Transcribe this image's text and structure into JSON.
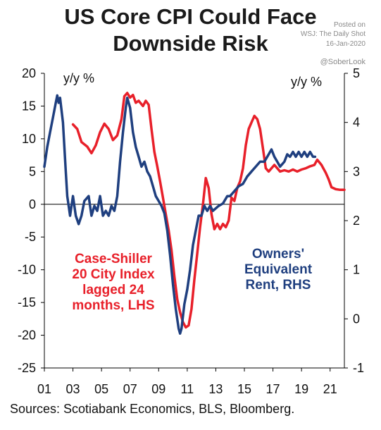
{
  "title_line1": "US Core CPI Could Face",
  "title_line2": "Downside Risk",
  "source_lines": [
    "Posted on",
    "WSJ: The Daily Shot",
    "16-Jan-2020",
    "@SoberLook"
  ],
  "sources": "Sources: Scotiabank Economics, BLS, Bloomberg.",
  "chart_data": {
    "type": "line",
    "title": "US Core CPI Could Face Downside Risk",
    "y_left_label": "y/y %",
    "y_right_label": "y/y %",
    "ylim_left": [
      -25,
      20
    ],
    "ylim_right": [
      -1,
      5
    ],
    "xlim": [
      2001,
      2022
    ],
    "x_tick_labels": [
      "01",
      "03",
      "05",
      "07",
      "09",
      "11",
      "13",
      "15",
      "17",
      "19",
      "21"
    ],
    "left_tick_labels": [
      "20",
      "15",
      "10",
      "5",
      "0",
      "-5",
      "-10",
      "-15",
      "-20",
      "-25"
    ],
    "right_tick_labels": [
      "5",
      "4",
      "3",
      "2",
      "1",
      "0",
      "-1"
    ],
    "grid": false,
    "series": [
      {
        "name": "Case-Shiller 20 City Index lagged 24 months, LHS",
        "axis": "left",
        "color": "#e8202a",
        "points": [
          [
            2003.0,
            12.2
          ],
          [
            2003.3,
            11.5
          ],
          [
            2003.6,
            9.5
          ],
          [
            2004.0,
            8.8
          ],
          [
            2004.3,
            7.8
          ],
          [
            2004.6,
            9.0
          ],
          [
            2004.9,
            11.0
          ],
          [
            2005.2,
            12.3
          ],
          [
            2005.5,
            11.5
          ],
          [
            2005.8,
            9.8
          ],
          [
            2006.1,
            10.5
          ],
          [
            2006.4,
            13.0
          ],
          [
            2006.6,
            16.5
          ],
          [
            2006.8,
            17.0
          ],
          [
            2007.0,
            16.3
          ],
          [
            2007.2,
            16.7
          ],
          [
            2007.4,
            15.5
          ],
          [
            2007.6,
            15.8
          ],
          [
            2007.9,
            15.0
          ],
          [
            2008.1,
            15.8
          ],
          [
            2008.3,
            15.2
          ],
          [
            2008.5,
            11.5
          ],
          [
            2008.7,
            8.0
          ],
          [
            2008.9,
            5.8
          ],
          [
            2009.1,
            3.5
          ],
          [
            2009.3,
            1.0
          ],
          [
            2009.5,
            -1.5
          ],
          [
            2009.7,
            -4.0
          ],
          [
            2009.9,
            -7.0
          ],
          [
            2010.1,
            -11.0
          ],
          [
            2010.3,
            -14.5
          ],
          [
            2010.5,
            -16.5
          ],
          [
            2010.7,
            -18.0
          ],
          [
            2010.9,
            -18.8
          ],
          [
            2011.1,
            -18.5
          ],
          [
            2011.3,
            -16.0
          ],
          [
            2011.5,
            -11.5
          ],
          [
            2011.7,
            -7.5
          ],
          [
            2011.9,
            -3.5
          ],
          [
            2012.1,
            0.0
          ],
          [
            2012.3,
            4.0
          ],
          [
            2012.5,
            2.5
          ],
          [
            2012.7,
            -1.5
          ],
          [
            2012.9,
            -3.8
          ],
          [
            2013.1,
            -3.0
          ],
          [
            2013.3,
            -3.8
          ],
          [
            2013.5,
            -3.0
          ],
          [
            2013.7,
            -3.5
          ],
          [
            2013.9,
            -2.5
          ],
          [
            2014.1,
            1.0
          ],
          [
            2014.3,
            0.5
          ],
          [
            2014.5,
            2.5
          ],
          [
            2014.7,
            3.5
          ],
          [
            2014.9,
            5.5
          ],
          [
            2015.1,
            9.0
          ],
          [
            2015.3,
            11.5
          ],
          [
            2015.5,
            12.5
          ],
          [
            2015.7,
            13.5
          ],
          [
            2015.9,
            13.0
          ],
          [
            2016.1,
            11.5
          ],
          [
            2016.3,
            8.5
          ],
          [
            2016.5,
            5.5
          ],
          [
            2016.7,
            5.0
          ],
          [
            2016.9,
            5.5
          ],
          [
            2017.1,
            6.0
          ],
          [
            2017.3,
            5.5
          ],
          [
            2017.5,
            5.0
          ],
          [
            2017.8,
            5.2
          ],
          [
            2018.1,
            5.0
          ],
          [
            2018.4,
            5.3
          ],
          [
            2018.7,
            5.0
          ],
          [
            2019.0,
            5.3
          ],
          [
            2019.3,
            5.5
          ],
          [
            2019.6,
            5.8
          ],
          [
            2019.9,
            6.0
          ],
          [
            2020.1,
            6.8
          ],
          [
            2020.4,
            6.0
          ],
          [
            2020.7,
            4.8
          ],
          [
            2020.9,
            3.8
          ],
          [
            2021.1,
            2.6
          ],
          [
            2021.4,
            2.3
          ],
          [
            2021.7,
            2.2
          ],
          [
            2022.0,
            2.2
          ]
        ]
      },
      {
        "name": "Owners' Equivalent Rent, RHS",
        "axis": "right",
        "color": "#1f3f7f",
        "points": [
          [
            2001.0,
            3.1
          ],
          [
            2001.2,
            3.5
          ],
          [
            2001.4,
            3.8
          ],
          [
            2001.6,
            4.1
          ],
          [
            2001.8,
            4.4
          ],
          [
            2001.9,
            4.55
          ],
          [
            2002.0,
            4.4
          ],
          [
            2002.1,
            4.5
          ],
          [
            2002.3,
            4.0
          ],
          [
            2002.4,
            3.5
          ],
          [
            2002.5,
            3.0
          ],
          [
            2002.6,
            2.5
          ],
          [
            2002.8,
            2.1
          ],
          [
            2003.0,
            2.5
          ],
          [
            2003.2,
            2.1
          ],
          [
            2003.4,
            1.93
          ],
          [
            2003.6,
            2.1
          ],
          [
            2003.8,
            2.4
          ],
          [
            2004.1,
            2.5
          ],
          [
            2004.3,
            2.1
          ],
          [
            2004.5,
            2.3
          ],
          [
            2004.7,
            2.2
          ],
          [
            2004.9,
            2.5
          ],
          [
            2005.1,
            2.1
          ],
          [
            2005.3,
            2.2
          ],
          [
            2005.5,
            2.1
          ],
          [
            2005.7,
            2.3
          ],
          [
            2005.9,
            2.2
          ],
          [
            2006.1,
            2.5
          ],
          [
            2006.3,
            3.2
          ],
          [
            2006.5,
            3.8
          ],
          [
            2006.7,
            4.3
          ],
          [
            2006.8,
            4.5
          ],
          [
            2007.0,
            4.3
          ],
          [
            2007.2,
            3.8
          ],
          [
            2007.4,
            3.5
          ],
          [
            2007.6,
            3.3
          ],
          [
            2007.8,
            3.1
          ],
          [
            2008.0,
            3.2
          ],
          [
            2008.2,
            3.0
          ],
          [
            2008.4,
            2.9
          ],
          [
            2008.6,
            2.7
          ],
          [
            2008.8,
            2.5
          ],
          [
            2009.0,
            2.4
          ],
          [
            2009.2,
            2.3
          ],
          [
            2009.4,
            2.15
          ],
          [
            2009.6,
            1.8
          ],
          [
            2009.8,
            1.3
          ],
          [
            2010.0,
            0.7
          ],
          [
            2010.2,
            0.2
          ],
          [
            2010.4,
            -0.2
          ],
          [
            2010.5,
            -0.3
          ],
          [
            2010.6,
            -0.2
          ],
          [
            2010.8,
            0.3
          ],
          [
            2011.0,
            0.6
          ],
          [
            2011.2,
            1.0
          ],
          [
            2011.4,
            1.5
          ],
          [
            2011.6,
            1.8
          ],
          [
            2011.8,
            2.1
          ],
          [
            2012.0,
            2.1
          ],
          [
            2012.2,
            2.3
          ],
          [
            2012.4,
            2.2
          ],
          [
            2012.6,
            2.3
          ],
          [
            2012.8,
            2.2
          ],
          [
            2013.0,
            2.25
          ],
          [
            2013.2,
            2.3
          ],
          [
            2013.5,
            2.35
          ],
          [
            2013.8,
            2.5
          ],
          [
            2014.0,
            2.5
          ],
          [
            2014.3,
            2.6
          ],
          [
            2014.6,
            2.7
          ],
          [
            2014.9,
            2.75
          ],
          [
            2015.2,
            2.9
          ],
          [
            2015.5,
            3.0
          ],
          [
            2015.8,
            3.1
          ],
          [
            2016.1,
            3.2
          ],
          [
            2016.4,
            3.2
          ],
          [
            2016.6,
            3.3
          ],
          [
            2016.9,
            3.45
          ],
          [
            2017.1,
            3.3
          ],
          [
            2017.3,
            3.2
          ],
          [
            2017.5,
            3.1
          ],
          [
            2017.8,
            3.2
          ],
          [
            2018.0,
            3.35
          ],
          [
            2018.2,
            3.3
          ],
          [
            2018.4,
            3.4
          ],
          [
            2018.6,
            3.3
          ],
          [
            2018.8,
            3.4
          ],
          [
            2019.0,
            3.3
          ],
          [
            2019.2,
            3.4
          ],
          [
            2019.4,
            3.3
          ],
          [
            2019.6,
            3.4
          ],
          [
            2019.8,
            3.3
          ],
          [
            2019.95,
            3.3
          ]
        ]
      }
    ],
    "annotations": [
      {
        "text": "Case-Shiller 20 City Index lagged 24 months, LHS",
        "lines": [
          "Case-Shiller",
          "20 City Index",
          "lagged 24",
          "months, LHS"
        ],
        "color": "#e8202a"
      },
      {
        "text": "Owners' Equivalent Rent, RHS",
        "lines": [
          "Owners'",
          "Equivalent",
          "Rent, RHS"
        ],
        "color": "#1f3f7f"
      }
    ]
  }
}
